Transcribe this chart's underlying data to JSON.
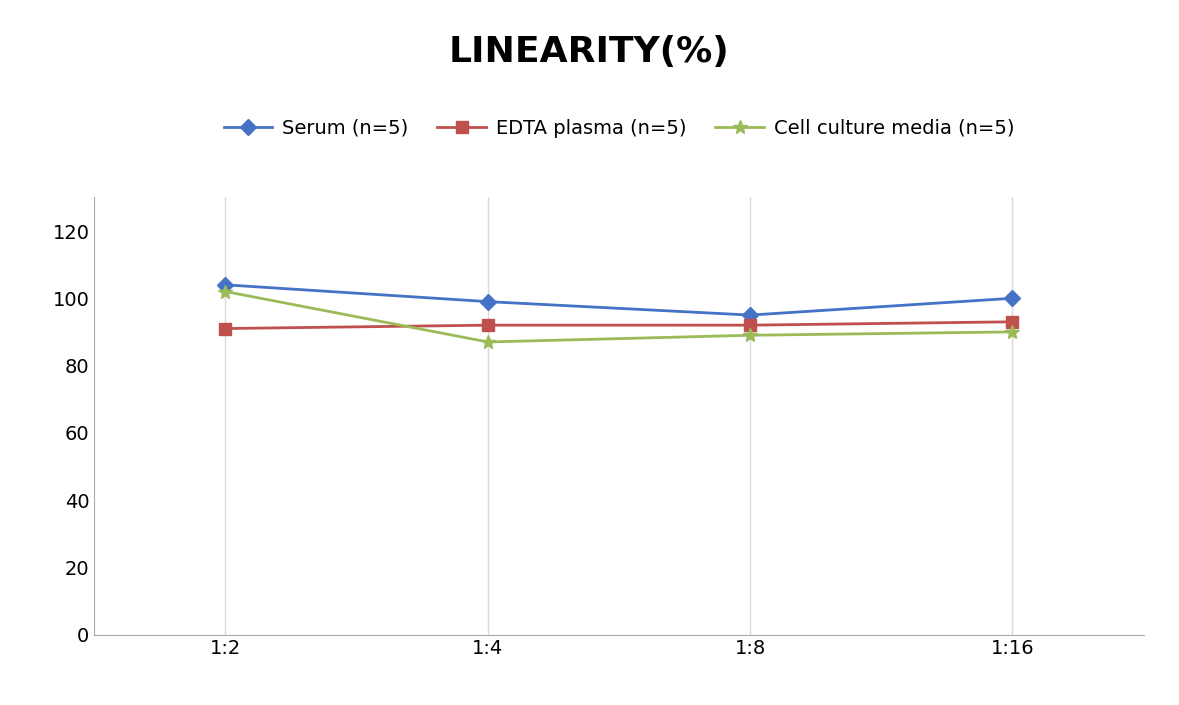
{
  "title": "LINEARITY(%)",
  "x_labels": [
    "1:2",
    "1:4",
    "1:8",
    "1:16"
  ],
  "x_positions": [
    0,
    1,
    2,
    3
  ],
  "series": [
    {
      "name": "Serum (n=5)",
      "values": [
        104,
        99,
        95,
        100
      ],
      "color": "#4472C4",
      "marker": "D",
      "linewidth": 2.0,
      "markersize": 8
    },
    {
      "name": "EDTA plasma (n=5)",
      "values": [
        91,
        92,
        92,
        93
      ],
      "color": "#C0504D",
      "marker": "s",
      "linewidth": 2.0,
      "markersize": 8
    },
    {
      "name": "Cell culture media (n=5)",
      "values": [
        102,
        87,
        89,
        90
      ],
      "color": "#9BBB59",
      "marker": "*",
      "linewidth": 2.0,
      "markersize": 10
    }
  ],
  "ylim": [
    0,
    130
  ],
  "yticks": [
    0,
    20,
    40,
    60,
    80,
    100,
    120
  ],
  "grid_color": "#D9D9D9",
  "background_color": "#FFFFFF",
  "title_fontsize": 26,
  "legend_fontsize": 14,
  "tick_fontsize": 14
}
